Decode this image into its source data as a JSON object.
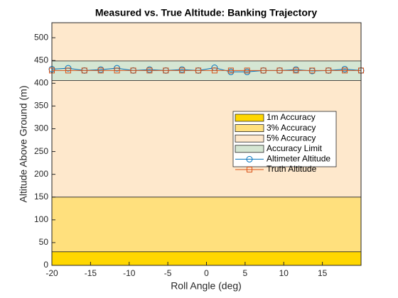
{
  "chart_data": {
    "type": "line",
    "title": "Measured vs. True Altitude: Banking Trajectory",
    "xlabel": "Roll Angle (deg)",
    "ylabel": "Altitude Above Ground (m)",
    "xlim": [
      -20,
      20
    ],
    "xticks": [
      -20,
      -15,
      -10,
      -5,
      0,
      5,
      10,
      15
    ],
    "ylim": [
      0,
      533
    ],
    "yticks": [
      0,
      50,
      100,
      150,
      200,
      250,
      300,
      350,
      400,
      450,
      500
    ],
    "bands": [
      {
        "name": "1m Accuracy",
        "color": "#ffd700",
        "range": [
          0,
          30
        ]
      },
      {
        "name": "3% Accuracy",
        "color": "#ffe07d",
        "range": [
          30,
          150
        ]
      },
      {
        "name": "5% Accuracy",
        "color": "#fee8cc",
        "range": [
          150,
          533
        ]
      },
      {
        "name": "Accuracy Limit",
        "color": "#d5e6d3",
        "range": [
          406,
          449
        ]
      }
    ],
    "series": [
      {
        "name": "Altimeter Altitude",
        "color": "#0072bd",
        "marker": "circle",
        "x": [
          -20,
          -17.89,
          -15.79,
          -13.68,
          -11.58,
          -9.47,
          -7.37,
          -5.26,
          -3.16,
          -1.05,
          1.05,
          3.16,
          5.26,
          7.37,
          9.47,
          11.58,
          13.68,
          15.79,
          17.89,
          20
        ],
        "values": [
          431,
          433,
          428,
          430,
          433,
          428,
          430,
          428,
          430,
          428,
          434,
          425,
          425,
          428,
          428,
          430,
          427,
          428,
          431,
          428
        ]
      },
      {
        "name": "Truth Altitude",
        "color": "#d95319",
        "marker": "square",
        "x": [
          -20,
          -17.89,
          -15.79,
          -13.68,
          -11.58,
          -9.47,
          -7.37,
          -5.26,
          -3.16,
          -1.05,
          1.05,
          3.16,
          5.26,
          7.37,
          9.47,
          11.58,
          13.68,
          15.79,
          17.89,
          20
        ],
        "values": [
          428,
          428,
          428,
          428,
          428,
          428,
          428,
          428,
          428,
          428,
          428,
          428,
          428,
          428,
          428,
          428,
          428,
          428,
          428,
          428
        ]
      }
    ]
  }
}
